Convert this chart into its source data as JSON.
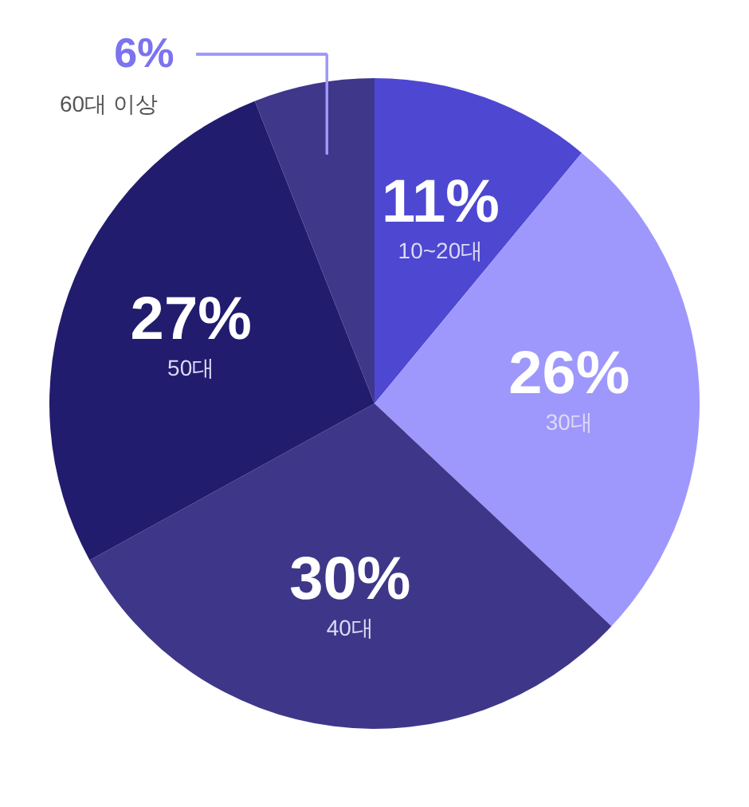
{
  "chart_data": {
    "type": "pie",
    "categories": [
      "10~20대",
      "30대",
      "40대",
      "50대",
      "60대 이상"
    ],
    "values": [
      11,
      26,
      30,
      27,
      6
    ],
    "value_labels": [
      "11%",
      "26%",
      "30%",
      "27%",
      "6%"
    ],
    "colors": [
      "#4d47d1",
      "#9e98fc",
      "#3e3789",
      "#221c6e",
      "#3f3789"
    ]
  }
}
